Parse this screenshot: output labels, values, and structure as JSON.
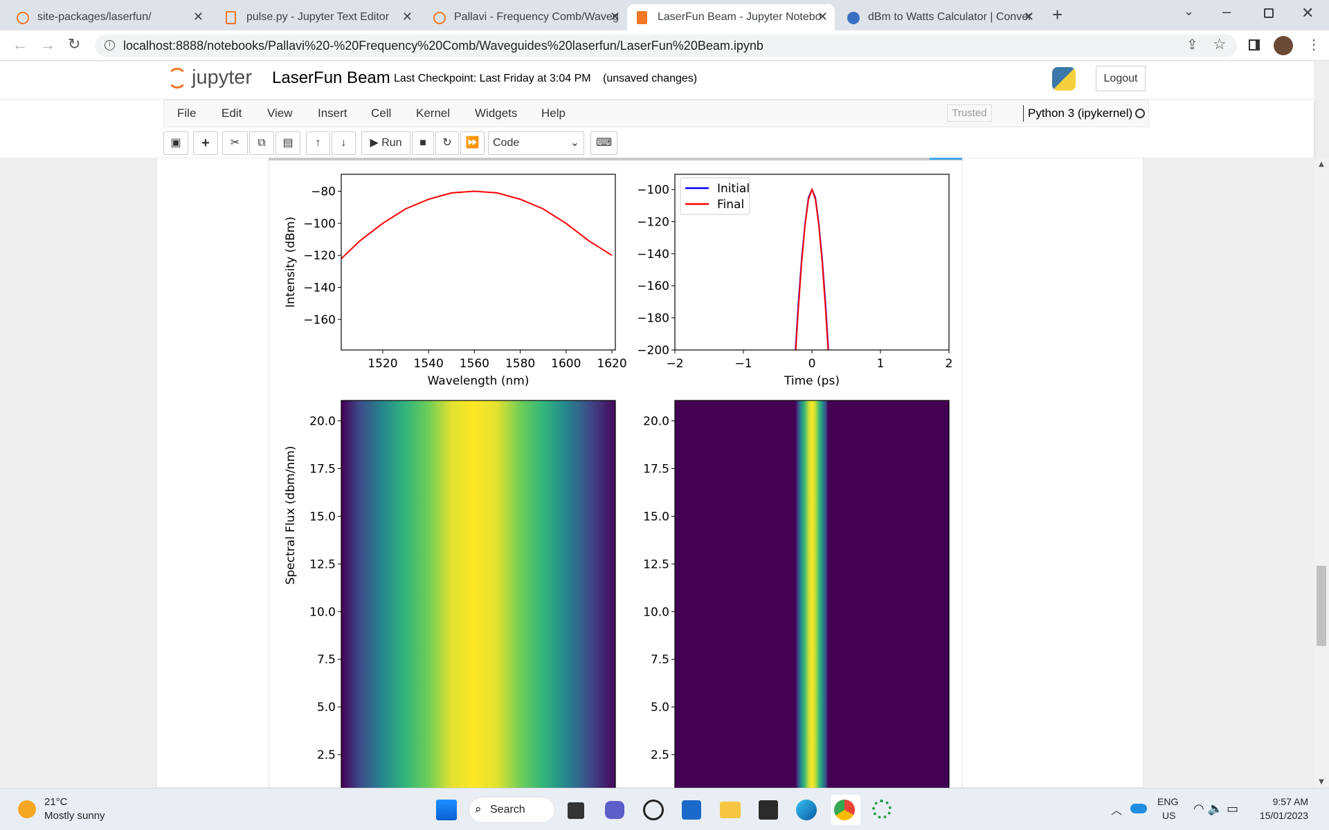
{
  "browser": {
    "tabs": [
      "site-packages/laserfun/",
      "pulse.py - Jupyter Text Editor",
      "Pallavi - Frequency Comb/Waveg",
      "LaserFun Beam - Jupyter Notebo",
      "dBm to Watts Calculator | Conver"
    ],
    "url": "localhost:8888/notebooks/Pallavi%20-%20Frequency%20Comb/Waveguides%20laserfun/LaserFun%20Beam.ipynb"
  },
  "notebook": {
    "logo": "jupyter",
    "name": "LaserFun Beam",
    "checkpoint": "Last Checkpoint: Last Friday at 3:04 PM",
    "status": "(unsaved changes)",
    "logout": "Logout",
    "menu": [
      "File",
      "Edit",
      "View",
      "Insert",
      "Cell",
      "Kernel",
      "Widgets",
      "Help"
    ],
    "trusted": "Trusted",
    "kernel": "Python 3 (ipykernel)",
    "run": "Run",
    "cell_type": "Code"
  },
  "chart_data": [
    {
      "type": "line",
      "xlabel": "Wavelength (nm)",
      "ylabel": "Intensity (dBm)",
      "x": [
        1502,
        1510,
        1520,
        1530,
        1540,
        1550,
        1560,
        1570,
        1580,
        1590,
        1600,
        1610,
        1620
      ],
      "series": [
        {
          "color": "#ff0000",
          "values": [
            -122,
            -111,
            -100,
            -91,
            -85,
            -81,
            -80,
            -81,
            -85,
            -91,
            -100,
            -111,
            -120
          ]
        }
      ],
      "xlim": [
        1501.9,
        1621.5
      ],
      "ylim": [
        -179.1,
        -69.4
      ],
      "xticks": [
        1520,
        1540,
        1560,
        1580,
        1600,
        1620
      ],
      "yticks": [
        {
          "value": -80,
          "label": "−80"
        },
        {
          "value": -100,
          "label": "−100"
        },
        {
          "value": -120,
          "label": "−120"
        },
        {
          "value": -140,
          "label": "−140"
        },
        {
          "value": -160,
          "label": "−160"
        }
      ]
    },
    {
      "type": "line",
      "xlabel": "Time (ps)",
      "x": [
        -0.24,
        -0.2,
        -0.15,
        -0.1,
        -0.05,
        0,
        0.05,
        0.1,
        0.15,
        0.2,
        0.24
      ],
      "series": [
        {
          "name": "Initial",
          "color": "#0000ff",
          "values": [
            -200,
            -172,
            -143,
            -121,
            -105,
            -100,
            -105,
            -121,
            -143,
            -172,
            -200
          ]
        },
        {
          "name": "Final",
          "color": "#ff0000",
          "values": [
            -203,
            -175,
            -145,
            -122,
            -106,
            -100,
            -106,
            -122,
            -145,
            -175,
            -203
          ]
        }
      ],
      "xlim": [
        -2,
        2
      ],
      "ylim": [
        -200,
        -90.5
      ],
      "legend": "upper left",
      "xticks": [
        {
          "value": -2,
          "label": "−2"
        },
        {
          "value": -1,
          "label": "−1"
        },
        0,
        1,
        2
      ],
      "yticks": [
        {
          "value": -100,
          "label": "−100"
        },
        {
          "value": -120,
          "label": "−120"
        },
        {
          "value": -140,
          "label": "−140"
        },
        {
          "value": -160,
          "label": "−160"
        },
        {
          "value": -180,
          "label": "−180"
        },
        {
          "value": -200,
          "label": "−200"
        }
      ]
    },
    {
      "type": "heatmap",
      "ylabel": "Spectral Flux (dbm/nm)",
      "x": [
        1502,
        1510,
        1520,
        1530,
        1540,
        1550,
        1560,
        1570,
        1580,
        1590,
        1600,
        1610,
        1620
      ],
      "values": [
        -122,
        -111,
        -100,
        -91,
        -85,
        -81,
        -80,
        -81,
        -85,
        -91,
        -100,
        -111,
        -120
      ],
      "clim": [
        -122,
        -80
      ],
      "xlim": [
        1501.9,
        1621.5
      ],
      "ylim": [
        0,
        21.07
      ],
      "yticks": [
        {
          "value": 20,
          "label": "20.0"
        },
        17.5,
        {
          "value": 15,
          "label": "15.0"
        },
        12.5,
        {
          "value": 10,
          "label": "10.0"
        },
        7.5,
        {
          "value": 5,
          "label": "5.0"
        },
        2.5
      ]
    },
    {
      "type": "heatmap",
      "x": [
        -0.24,
        -0.2,
        -0.15,
        -0.1,
        -0.05,
        0,
        0.05,
        0.1,
        0.15,
        0.2,
        0.24
      ],
      "values": [
        -200,
        -172,
        -143,
        -121,
        -105,
        -100,
        -105,
        -121,
        -143,
        -172,
        -200
      ],
      "clim": [
        -200,
        -100
      ],
      "xlim": [
        -2,
        2
      ],
      "ylim": [
        0,
        21.07
      ],
      "yticks": [
        {
          "value": 20,
          "label": "20.0"
        },
        17.5,
        {
          "value": 15,
          "label": "15.0"
        },
        12.5,
        {
          "value": 10,
          "label": "10.0"
        },
        7.5,
        {
          "value": 5,
          "label": "5.0"
        },
        2.5
      ]
    }
  ],
  "taskbar": {
    "temperature": "21°C",
    "weather": "Mostly sunny",
    "search": "Search",
    "language": "ENG",
    "region": "US",
    "time": "9:57 AM",
    "date": "15/01/2023"
  }
}
